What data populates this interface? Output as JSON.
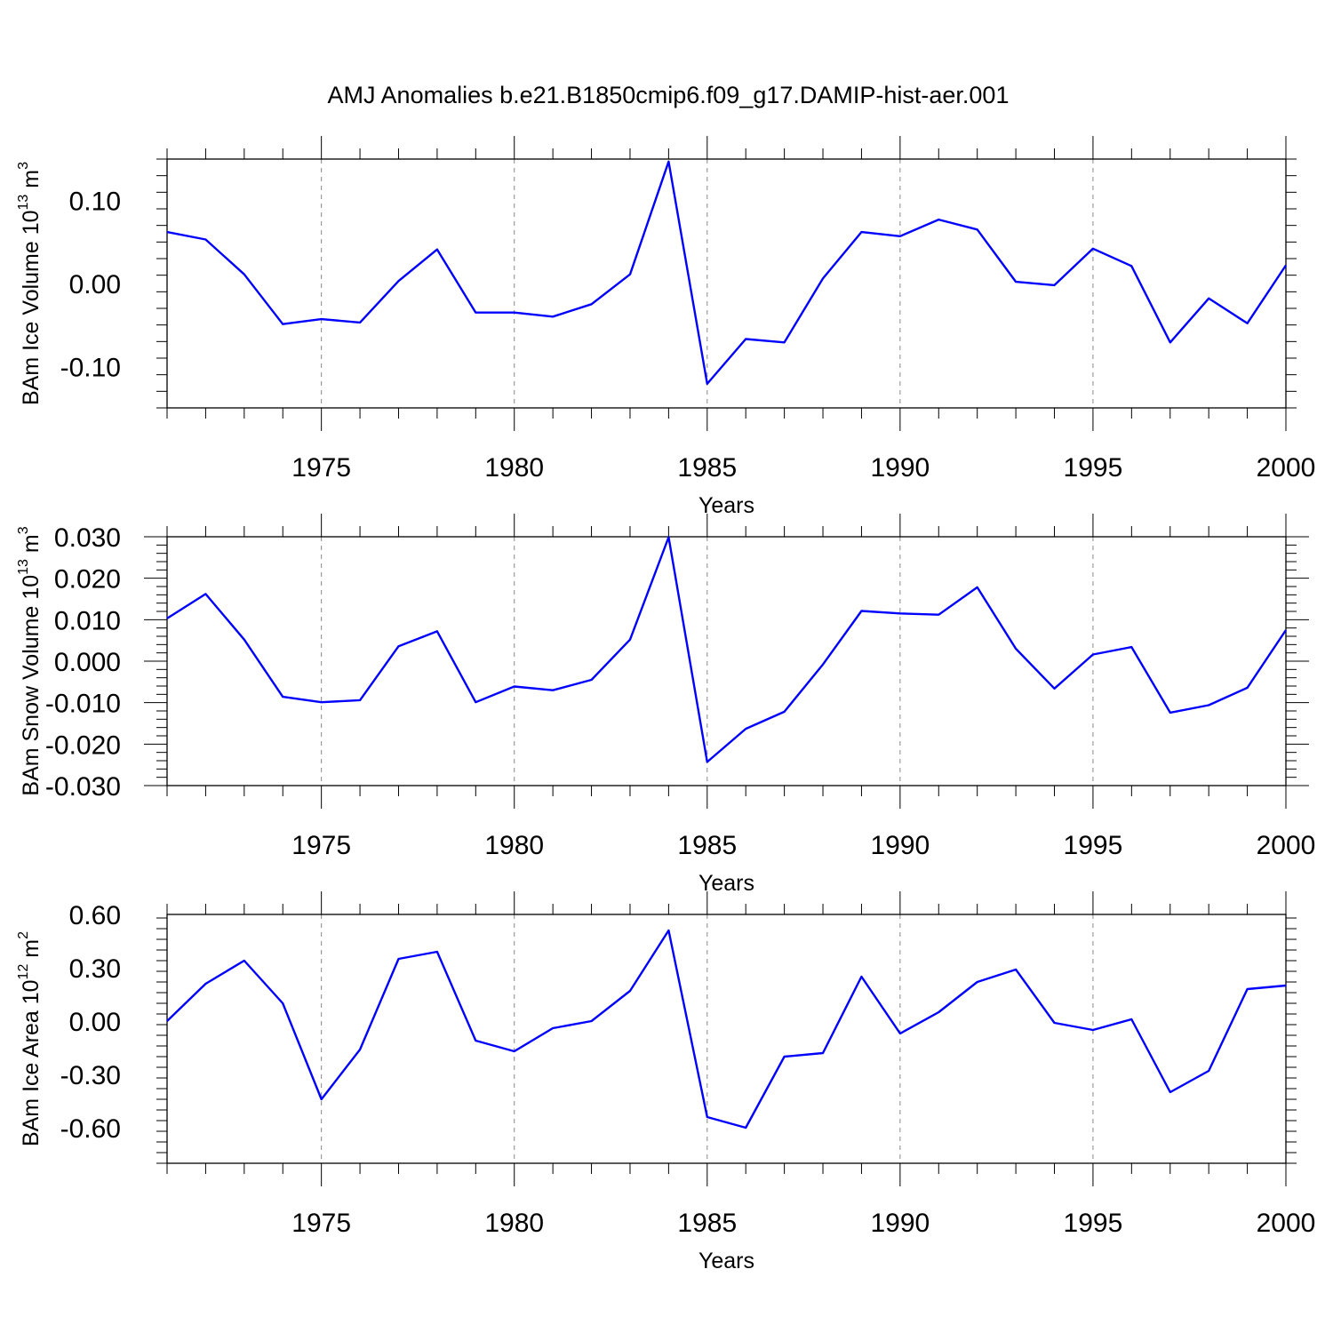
{
  "figure": {
    "title": "AMJ Anomalies b.e21.B1850cmip6.f09_g17.DAMIP-hist-aer.001"
  },
  "chart_data": [
    {
      "type": "line",
      "ylabel": "BAm Ice Volume 10",
      "ylabel_exp": "13",
      "ylabel_unit": " m",
      "ylabel_unit_exp": "3",
      "xlabel": "Years",
      "xlim": [
        1971,
        2000
      ],
      "ylim": [
        -0.15,
        0.15
      ],
      "xticks": [
        1975,
        1980,
        1985,
        1990,
        1995,
        2000
      ],
      "xtick_labels": [
        "1975",
        "1980",
        "1985",
        "1990",
        "1995",
        "2000"
      ],
      "yticks": [
        0.1,
        0.0,
        -0.1
      ],
      "ytick_labels": [
        "0.10",
        "0.00",
        "-0.10"
      ],
      "grid": "dashed vertical at major x ticks",
      "color": "#0000ff",
      "x": [
        1971,
        1972,
        1973,
        1974,
        1975,
        1976,
        1977,
        1978,
        1979,
        1980,
        1981,
        1982,
        1983,
        1984,
        1985,
        1986,
        1987,
        1988,
        1989,
        1990,
        1991,
        1992,
        1993,
        1994,
        1995,
        1996,
        1997,
        1998,
        1999,
        2000
      ],
      "values": [
        0.062,
        0.053,
        0.011,
        -0.049,
        -0.043,
        -0.047,
        0.003,
        0.041,
        -0.035,
        -0.035,
        -0.04,
        -0.025,
        0.011,
        0.147,
        -0.121,
        -0.067,
        -0.071,
        0.006,
        0.062,
        0.057,
        0.077,
        0.065,
        0.002,
        -0.002,
        0.042,
        0.021,
        -0.071,
        -0.018,
        -0.048,
        0.022
      ]
    },
    {
      "type": "line",
      "ylabel": "BAm Snow Volume 10",
      "ylabel_exp": "13",
      "ylabel_unit": " m",
      "ylabel_unit_exp": "3",
      "xlabel": "Years",
      "xlim": [
        1971,
        2000
      ],
      "ylim": [
        -0.03,
        0.03
      ],
      "xticks": [
        1975,
        1980,
        1985,
        1990,
        1995,
        2000
      ],
      "xtick_labels": [
        "1975",
        "1980",
        "1985",
        "1990",
        "1995",
        "2000"
      ],
      "yticks": [
        0.03,
        0.02,
        0.01,
        0.0,
        -0.01,
        -0.02,
        -0.03
      ],
      "ytick_labels": [
        "0.030",
        "0.020",
        "0.010",
        "0.000",
        "-0.010",
        "-0.020",
        "-0.030"
      ],
      "grid": "dashed vertical at major x ticks",
      "color": "#0000ff",
      "x": [
        1971,
        1972,
        1973,
        1974,
        1975,
        1976,
        1977,
        1978,
        1979,
        1980,
        1981,
        1982,
        1983,
        1984,
        1985,
        1986,
        1987,
        1988,
        1989,
        1990,
        1991,
        1992,
        1993,
        1994,
        1995,
        1996,
        1997,
        1998,
        1999,
        2000
      ],
      "values": [
        0.0103,
        0.0162,
        0.0052,
        -0.0086,
        -0.0099,
        -0.0094,
        0.0036,
        0.0072,
        -0.0099,
        -0.0061,
        -0.007,
        -0.0045,
        0.0052,
        0.0299,
        -0.0243,
        -0.0163,
        -0.0122,
        -0.0008,
        0.0121,
        0.0115,
        0.0112,
        0.0178,
        0.003,
        -0.0066,
        0.0016,
        0.0034,
        -0.0124,
        -0.0106,
        -0.0064,
        0.0075
      ]
    },
    {
      "type": "line",
      "ylabel": "BAm Ice Area 10",
      "ylabel_exp": "12",
      "ylabel_unit": " m",
      "ylabel_unit_exp": "2",
      "xlabel": "Years",
      "xlim": [
        1971,
        2000
      ],
      "ylim": [
        -0.8,
        0.6
      ],
      "xticks": [
        1975,
        1980,
        1985,
        1990,
        1995,
        2000
      ],
      "xtick_labels": [
        "1975",
        "1980",
        "1985",
        "1990",
        "1995",
        "2000"
      ],
      "yticks": [
        0.6,
        0.3,
        0.0,
        -0.3,
        -0.6
      ],
      "ytick_labels": [
        "0.60",
        "0.30",
        "0.00",
        "-0.30",
        "-0.60"
      ],
      "grid": "dashed vertical at major x ticks",
      "color": "#0000ff",
      "x": [
        1971,
        1972,
        1973,
        1974,
        1975,
        1976,
        1977,
        1978,
        1979,
        1980,
        1981,
        1982,
        1983,
        1984,
        1985,
        1986,
        1987,
        1988,
        1989,
        1990,
        1991,
        1992,
        1993,
        1994,
        1995,
        1996,
        1997,
        1998,
        1999,
        2000
      ],
      "values": [
        0.0,
        0.21,
        0.34,
        0.1,
        -0.44,
        -0.16,
        0.35,
        0.39,
        -0.11,
        -0.17,
        -0.04,
        0.0,
        0.17,
        0.51,
        -0.54,
        -0.6,
        -0.2,
        -0.18,
        0.25,
        -0.07,
        0.05,
        0.22,
        0.29,
        -0.01,
        -0.05,
        0.01,
        -0.4,
        -0.28,
        0.18,
        0.2
      ]
    }
  ]
}
